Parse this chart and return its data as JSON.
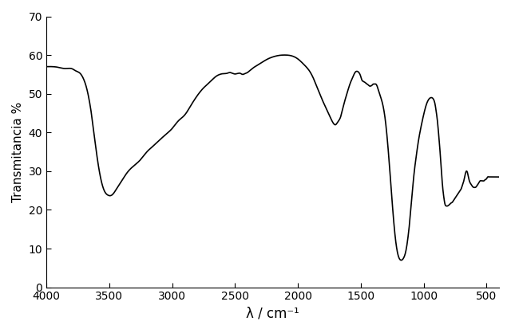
{
  "title": "",
  "xlabel": "λ / cm⁻¹",
  "ylabel": "Transmitancia %",
  "xlim": [
    400,
    4000
  ],
  "ylim": [
    0,
    70
  ],
  "xticks": [
    500,
    1000,
    1500,
    2000,
    2500,
    3000,
    3500,
    4000
  ],
  "yticks": [
    0,
    10,
    20,
    30,
    40,
    50,
    60,
    70
  ],
  "line_color": "#000000",
  "line_width": 1.2,
  "background_color": "#ffffff",
  "keypoints": [
    [
      4000,
      57.0
    ],
    [
      3950,
      57.0
    ],
    [
      3900,
      56.8
    ],
    [
      3850,
      56.5
    ],
    [
      3800,
      56.5
    ],
    [
      3780,
      56.2
    ],
    [
      3760,
      55.8
    ],
    [
      3740,
      55.5
    ],
    [
      3720,
      54.8
    ],
    [
      3700,
      53.5
    ],
    [
      3680,
      51.5
    ],
    [
      3660,
      48.5
    ],
    [
      3640,
      44.5
    ],
    [
      3620,
      39.5
    ],
    [
      3600,
      34.5
    ],
    [
      3570,
      28.5
    ],
    [
      3540,
      25.0
    ],
    [
      3510,
      23.8
    ],
    [
      3480,
      23.8
    ],
    [
      3460,
      24.5
    ],
    [
      3440,
      25.5
    ],
    [
      3400,
      27.5
    ],
    [
      3360,
      29.5
    ],
    [
      3300,
      31.5
    ],
    [
      3250,
      33.0
    ],
    [
      3200,
      35.0
    ],
    [
      3150,
      36.5
    ],
    [
      3100,
      38.0
    ],
    [
      3050,
      39.5
    ],
    [
      3000,
      41.0
    ],
    [
      2950,
      43.0
    ],
    [
      2900,
      44.5
    ],
    [
      2850,
      47.0
    ],
    [
      2800,
      49.5
    ],
    [
      2750,
      51.5
    ],
    [
      2700,
      53.0
    ],
    [
      2650,
      54.5
    ],
    [
      2620,
      55.0
    ],
    [
      2590,
      55.2
    ],
    [
      2560,
      55.3
    ],
    [
      2540,
      55.5
    ],
    [
      2520,
      55.3
    ],
    [
      2500,
      55.1
    ],
    [
      2480,
      55.2
    ],
    [
      2460,
      55.3
    ],
    [
      2440,
      55.0
    ],
    [
      2420,
      55.2
    ],
    [
      2400,
      55.5
    ],
    [
      2380,
      56.0
    ],
    [
      2350,
      56.8
    ],
    [
      2300,
      57.8
    ],
    [
      2250,
      58.8
    ],
    [
      2200,
      59.5
    ],
    [
      2150,
      59.9
    ],
    [
      2100,
      60.0
    ],
    [
      2050,
      59.8
    ],
    [
      2000,
      59.0
    ],
    [
      1950,
      57.5
    ],
    [
      1900,
      55.5
    ],
    [
      1850,
      52.0
    ],
    [
      1800,
      48.0
    ],
    [
      1750,
      44.5
    ],
    [
      1720,
      42.5
    ],
    [
      1700,
      42.0
    ],
    [
      1680,
      42.8
    ],
    [
      1660,
      44.0
    ],
    [
      1640,
      46.5
    ],
    [
      1610,
      50.0
    ],
    [
      1580,
      53.0
    ],
    [
      1560,
      54.5
    ],
    [
      1545,
      55.5
    ],
    [
      1530,
      55.8
    ],
    [
      1515,
      55.5
    ],
    [
      1500,
      54.5
    ],
    [
      1490,
      53.5
    ],
    [
      1480,
      53.2
    ],
    [
      1470,
      53.0
    ],
    [
      1460,
      52.8
    ],
    [
      1450,
      52.5
    ],
    [
      1440,
      52.3
    ],
    [
      1430,
      52.0
    ],
    [
      1420,
      52.0
    ],
    [
      1410,
      52.2
    ],
    [
      1400,
      52.5
    ],
    [
      1390,
      52.5
    ],
    [
      1380,
      52.5
    ],
    [
      1370,
      52.0
    ],
    [
      1360,
      51.0
    ],
    [
      1340,
      49.0
    ],
    [
      1320,
      46.5
    ],
    [
      1300,
      42.0
    ],
    [
      1280,
      35.0
    ],
    [
      1260,
      26.5
    ],
    [
      1240,
      18.0
    ],
    [
      1220,
      11.5
    ],
    [
      1200,
      8.0
    ],
    [
      1180,
      7.0
    ],
    [
      1160,
      7.5
    ],
    [
      1140,
      9.5
    ],
    [
      1120,
      14.0
    ],
    [
      1100,
      20.5
    ],
    [
      1080,
      28.0
    ],
    [
      1060,
      33.5
    ],
    [
      1040,
      38.0
    ],
    [
      1020,
      41.5
    ],
    [
      1000,
      44.5
    ],
    [
      980,
      47.0
    ],
    [
      960,
      48.5
    ],
    [
      940,
      49.0
    ],
    [
      920,
      48.5
    ],
    [
      910,
      47.5
    ],
    [
      900,
      45.5
    ],
    [
      890,
      43.0
    ],
    [
      880,
      39.5
    ],
    [
      870,
      35.5
    ],
    [
      860,
      31.0
    ],
    [
      850,
      26.5
    ],
    [
      840,
      23.5
    ],
    [
      830,
      21.5
    ],
    [
      820,
      21.0
    ],
    [
      810,
      21.0
    ],
    [
      800,
      21.2
    ],
    [
      790,
      21.5
    ],
    [
      780,
      21.8
    ],
    [
      770,
      22.0
    ],
    [
      760,
      22.5
    ],
    [
      750,
      23.0
    ],
    [
      740,
      23.5
    ],
    [
      730,
      24.0
    ],
    [
      720,
      24.5
    ],
    [
      710,
      25.0
    ],
    [
      700,
      25.5
    ],
    [
      690,
      26.5
    ],
    [
      680,
      27.5
    ],
    [
      670,
      29.0
    ],
    [
      660,
      30.0
    ],
    [
      650,
      29.5
    ],
    [
      640,
      28.0
    ],
    [
      630,
      27.0
    ],
    [
      620,
      26.5
    ],
    [
      610,
      26.0
    ],
    [
      600,
      25.8
    ],
    [
      590,
      25.8
    ],
    [
      580,
      26.0
    ],
    [
      570,
      26.5
    ],
    [
      560,
      27.0
    ],
    [
      550,
      27.5
    ],
    [
      540,
      27.5
    ],
    [
      530,
      27.5
    ],
    [
      520,
      27.5
    ],
    [
      510,
      27.8
    ],
    [
      500,
      28.0
    ],
    [
      490,
      28.5
    ],
    [
      480,
      28.5
    ],
    [
      470,
      28.5
    ],
    [
      460,
      28.5
    ],
    [
      450,
      28.5
    ],
    [
      440,
      28.5
    ],
    [
      430,
      28.5
    ],
    [
      420,
      28.5
    ],
    [
      410,
      28.5
    ],
    [
      400,
      28.5
    ]
  ]
}
